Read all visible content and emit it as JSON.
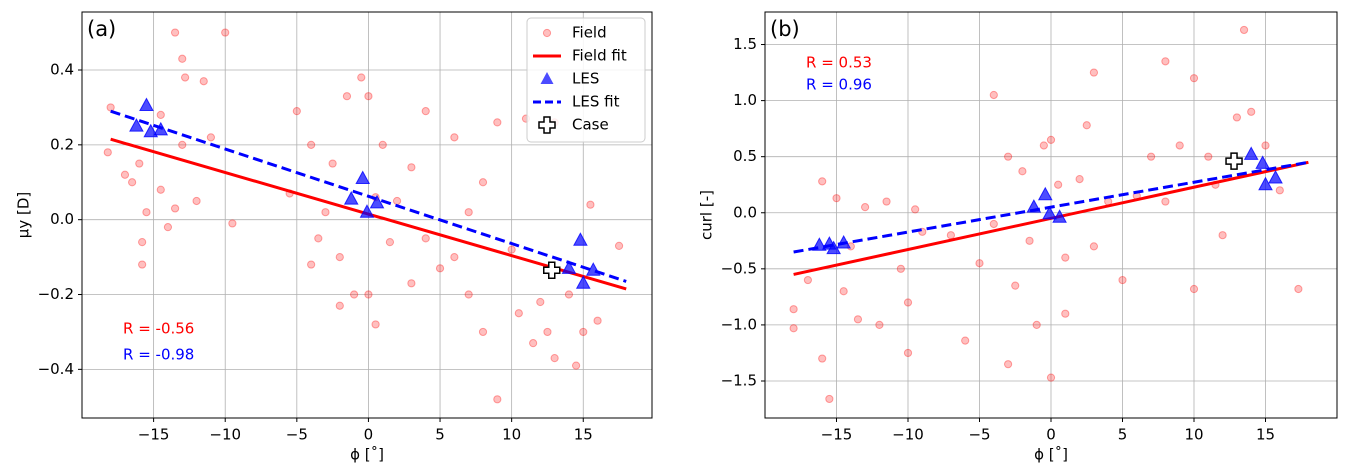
{
  "chart_data": [
    {
      "type": "scatter",
      "panel_label": "(a)",
      "x_label": "ϕ [˚]",
      "y_label": "μy [D]",
      "grid": true,
      "legend": "upper right",
      "xlim": [
        -20,
        19.8
      ],
      "ylim": [
        -0.53,
        0.555
      ],
      "xticks": [
        {
          "value": -15,
          "label": "−15"
        },
        {
          "value": -10,
          "label": "−10"
        },
        {
          "value": -5,
          "label": "−5"
        },
        0,
        5,
        10,
        15
      ],
      "yticks": [
        {
          "value": -0.4,
          "label": "−0.4"
        },
        {
          "value": -0.2,
          "label": "−0.2"
        },
        {
          "value": 0,
          "label": "0.0"
        },
        {
          "value": 0.2,
          "label": "0.2"
        },
        {
          "value": 0.4,
          "label": "0.4"
        }
      ],
      "annotations": [
        {
          "text": "R = -0.56",
          "color": "#ff0000"
        },
        {
          "text": "R = -0.98",
          "color": "#0000ff"
        }
      ],
      "series": [
        {
          "name": "Field",
          "style": "dot",
          "color": "#ff0000",
          "x": [
            -18,
            -18.2,
            -17,
            -16.5,
            -16,
            -15.5,
            -15.8,
            -15.8,
            -14.5,
            -14,
            -13.5,
            -13,
            -13,
            -12.8,
            -12,
            -11.5,
            -11,
            -10,
            -9.5,
            -13.5,
            -14.5,
            -5,
            -5.5,
            -4,
            -4,
            -3,
            -3.5,
            -2.5,
            -2,
            -2,
            -1.5,
            -1,
            -0.5,
            0,
            0,
            0.5,
            0.5,
            1,
            1.5,
            2,
            3,
            3,
            4,
            4,
            5,
            6,
            7,
            8,
            8,
            9,
            9,
            10,
            10.5,
            11,
            11.5,
            12,
            12.5,
            13,
            13,
            14,
            14.5,
            15,
            15.5,
            16,
            17.5,
            7,
            6
          ],
          "values": [
            0.3,
            0.18,
            0.12,
            0.1,
            0.15,
            0.02,
            -0.06,
            -0.12,
            0.28,
            -0.02,
            0.5,
            0.43,
            0.2,
            0.38,
            0.05,
            0.37,
            0.22,
            0.5,
            -0.01,
            0.03,
            0.08,
            0.29,
            0.07,
            0.2,
            -0.12,
            0.02,
            -0.05,
            0.15,
            -0.1,
            -0.23,
            0.33,
            -0.2,
            0.38,
            0.33,
            -0.2,
            0.06,
            -0.28,
            0.2,
            -0.06,
            0.05,
            0.14,
            -0.17,
            0.29,
            -0.05,
            -0.13,
            -0.1,
            -0.2,
            0.1,
            -0.3,
            -0.48,
            0.26,
            -0.08,
            -0.25,
            0.27,
            -0.33,
            -0.22,
            -0.3,
            0.26,
            -0.37,
            -0.2,
            -0.39,
            -0.3,
            0.04,
            -0.27,
            -0.07,
            0.02,
            0.22
          ]
        },
        {
          "name": "Field fit",
          "style": "line",
          "color": "#ff0000",
          "x": [
            -18,
            18
          ],
          "values": [
            0.215,
            -0.185
          ]
        },
        {
          "name": "LES",
          "style": "triangle",
          "color": "#0000ff",
          "x": [
            -16.2,
            -15.5,
            -15.2,
            -14.5,
            -1.2,
            -0.4,
            -0.1,
            0.6,
            14,
            14.8,
            15,
            15.7
          ],
          "values": [
            0.25,
            0.305,
            0.235,
            0.24,
            0.055,
            0.11,
            0.02,
            0.045,
            -0.13,
            -0.055,
            -0.17,
            -0.135
          ]
        },
        {
          "name": "LES fit",
          "style": "dashed",
          "color": "#0000ff",
          "x": [
            -18,
            18
          ],
          "values": [
            0.29,
            -0.165
          ]
        },
        {
          "name": "Case",
          "style": "cross",
          "color": "#000000",
          "x": [
            12.8
          ],
          "values": [
            -0.135
          ]
        }
      ]
    },
    {
      "type": "scatter",
      "panel_label": "(b)",
      "x_label": "ϕ [˚]",
      "y_label": "curl [-]",
      "grid": true,
      "xlim": [
        -20,
        20
      ],
      "ylim": [
        -1.83,
        1.79
      ],
      "xticks": [
        {
          "value": -15,
          "label": "−15"
        },
        {
          "value": -10,
          "label": "−10"
        },
        {
          "value": -5,
          "label": "−5"
        },
        0,
        5,
        10,
        15
      ],
      "yticks": [
        {
          "value": -1.5,
          "label": "−1.5"
        },
        {
          "value": -1,
          "label": "−1.0"
        },
        {
          "value": -0.5,
          "label": "−0.5"
        },
        {
          "value": 0,
          "label": "0.0"
        },
        {
          "value": 0.5,
          "label": "0.5"
        },
        {
          "value": 1,
          "label": "1.0"
        },
        {
          "value": 1.5,
          "label": "1.5"
        }
      ],
      "annotations": [
        {
          "text": "R = 0.53",
          "color": "#ff0000"
        },
        {
          "text": "R = 0.96",
          "color": "#0000ff"
        }
      ],
      "series": [
        {
          "name": "Field",
          "style": "dot",
          "color": "#ff0000",
          "x": [
            -18,
            -18,
            -17,
            -16,
            -16,
            -15.5,
            -15,
            -14.5,
            -14,
            -13.5,
            -13,
            -12,
            -11.5,
            -10.5,
            -10,
            -10,
            -9.5,
            -9,
            -7,
            -6,
            -5,
            -4,
            -4,
            -3,
            -3,
            -2.5,
            -2,
            -1.5,
            -1,
            -0.5,
            0,
            0,
            0.5,
            1,
            1,
            2,
            2.5,
            3,
            3,
            4,
            5,
            6,
            7,
            8,
            8,
            9,
            10,
            10,
            11,
            11.5,
            12,
            13,
            13.5,
            14,
            15,
            16,
            17.3
          ],
          "values": [
            -0.86,
            -1.03,
            -0.6,
            0.28,
            -1.3,
            -1.66,
            0.13,
            -0.7,
            -0.3,
            -0.95,
            0.05,
            -1.0,
            0.1,
            -0.5,
            -1.25,
            -0.8,
            0.03,
            -0.17,
            -0.2,
            -1.14,
            -0.45,
            1.05,
            -0.1,
            -1.35,
            0.5,
            -0.65,
            0.37,
            -0.25,
            -1.0,
            0.6,
            -1.47,
            0.65,
            0.25,
            -0.4,
            -0.9,
            0.3,
            0.78,
            1.25,
            -0.3,
            0.1,
            -0.6,
            0.15,
            0.5,
            1.35,
            0.1,
            0.6,
            1.2,
            -0.68,
            0.5,
            0.25,
            -0.2,
            0.85,
            1.63,
            0.9,
            0.6,
            0.2,
            -0.68
          ]
        },
        {
          "name": "Field fit",
          "style": "line",
          "color": "#ff0000",
          "x": [
            -18,
            18
          ],
          "values": [
            -0.55,
            0.45
          ]
        },
        {
          "name": "LES",
          "style": "triangle",
          "color": "#0000ff",
          "x": [
            -16.2,
            -15.5,
            -15.2,
            -14.5,
            -1.2,
            -0.4,
            -0.1,
            0.6,
            14,
            14.8,
            15,
            15.7
          ],
          "values": [
            -0.29,
            -0.28,
            -0.32,
            -0.27,
            0.05,
            0.16,
            -0.01,
            -0.04,
            0.52,
            0.44,
            0.25,
            0.31
          ]
        },
        {
          "name": "LES fit",
          "style": "dashed",
          "color": "#0000ff",
          "x": [
            -18,
            18
          ],
          "values": [
            -0.35,
            0.45
          ]
        },
        {
          "name": "Case",
          "style": "cross",
          "color": "#000000",
          "x": [
            12.8
          ],
          "values": [
            0.46
          ]
        }
      ]
    }
  ]
}
